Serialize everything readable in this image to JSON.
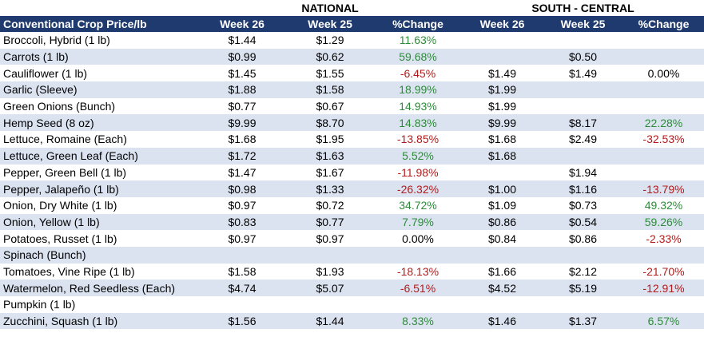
{
  "groups": {
    "national": "NATIONAL",
    "south_central": "SOUTH - CENTRAL"
  },
  "columns": [
    "Conventional Crop Price/lb",
    "Week 26",
    "Week 25",
    "%Change",
    "Week 26",
    "Week 25",
    "%Change"
  ],
  "colors": {
    "header_bg": "#1f3a6e",
    "stripe": "#dbe3f1",
    "positive": "#2e8b3a",
    "negative": "#b01c1c"
  },
  "rows": [
    {
      "name": "Broccoli, Hybrid (1 lb)",
      "n26": "$1.44",
      "n25": "$1.29",
      "nch": "11.63%",
      "s26": "",
      "s25": "",
      "sch": ""
    },
    {
      "name": "Carrots (1 lb)",
      "n26": "$0.99",
      "n25": "$0.62",
      "nch": "59.68%",
      "s26": "",
      "s25": "$0.50",
      "sch": ""
    },
    {
      "name": "Cauliflower (1 lb)",
      "n26": "$1.45",
      "n25": "$1.55",
      "nch": "-6.45%",
      "s26": "$1.49",
      "s25": "$1.49",
      "sch": "0.00%"
    },
    {
      "name": "Garlic (Sleeve)",
      "n26": "$1.88",
      "n25": "$1.58",
      "nch": "18.99%",
      "s26": "$1.99",
      "s25": "",
      "sch": ""
    },
    {
      "name": "Green Onions (Bunch)",
      "n26": "$0.77",
      "n25": "$0.67",
      "nch": "14.93%",
      "s26": "$1.99",
      "s25": "",
      "sch": ""
    },
    {
      "name": "Hemp Seed (8 oz)",
      "n26": "$9.99",
      "n25": "$8.70",
      "nch": "14.83%",
      "s26": "$9.99",
      "s25": "$8.17",
      "sch": "22.28%"
    },
    {
      "name": "Lettuce, Romaine (Each)",
      "n26": "$1.68",
      "n25": "$1.95",
      "nch": "-13.85%",
      "s26": "$1.68",
      "s25": "$2.49",
      "sch": "-32.53%"
    },
    {
      "name": "Lettuce, Green Leaf (Each)",
      "n26": "$1.72",
      "n25": "$1.63",
      "nch": "5.52%",
      "s26": "$1.68",
      "s25": "",
      "sch": ""
    },
    {
      "name": "Pepper, Green Bell (1 lb)",
      "n26": "$1.47",
      "n25": "$1.67",
      "nch": "-11.98%",
      "s26": "",
      "s25": "$1.94",
      "sch": ""
    },
    {
      "name": "Pepper, Jalapeño (1 lb)",
      "n26": "$0.98",
      "n25": "$1.33",
      "nch": "-26.32%",
      "s26": "$1.00",
      "s25": "$1.16",
      "sch": "-13.79%"
    },
    {
      "name": "Onion, Dry White (1 lb)",
      "n26": "$0.97",
      "n25": "$0.72",
      "nch": "34.72%",
      "s26": "$1.09",
      "s25": "$0.73",
      "sch": "49.32%"
    },
    {
      "name": "Onion, Yellow (1 lb)",
      "n26": "$0.83",
      "n25": "$0.77",
      "nch": "7.79%",
      "s26": "$0.86",
      "s25": "$0.54",
      "sch": "59.26%"
    },
    {
      "name": "Potatoes, Russet (1 lb)",
      "n26": "$0.97",
      "n25": "$0.97",
      "nch": "0.00%",
      "s26": "$0.84",
      "s25": "$0.86",
      "sch": "-2.33%"
    },
    {
      "name": "Spinach (Bunch)",
      "n26": "",
      "n25": "",
      "nch": "",
      "s26": "",
      "s25": "",
      "sch": ""
    },
    {
      "name": "Tomatoes, Vine Ripe (1 lb)",
      "n26": "$1.58",
      "n25": "$1.93",
      "nch": "-18.13%",
      "s26": "$1.66",
      "s25": "$2.12",
      "sch": "-21.70%"
    },
    {
      "name": "Watermelon, Red Seedless (Each)",
      "n26": "$4.74",
      "n25": "$5.07",
      "nch": "-6.51%",
      "s26": "$4.52",
      "s25": "$5.19",
      "sch": "-12.91%"
    },
    {
      "name": "Pumpkin (1 lb)",
      "n26": "",
      "n25": "",
      "nch": "",
      "s26": "",
      "s25": "",
      "sch": ""
    },
    {
      "name": "Zucchini, Squash (1 lb)",
      "n26": "$1.56",
      "n25": "$1.44",
      "nch": "8.33%",
      "s26": "$1.46",
      "s25": "$1.37",
      "sch": "6.57%"
    }
  ]
}
